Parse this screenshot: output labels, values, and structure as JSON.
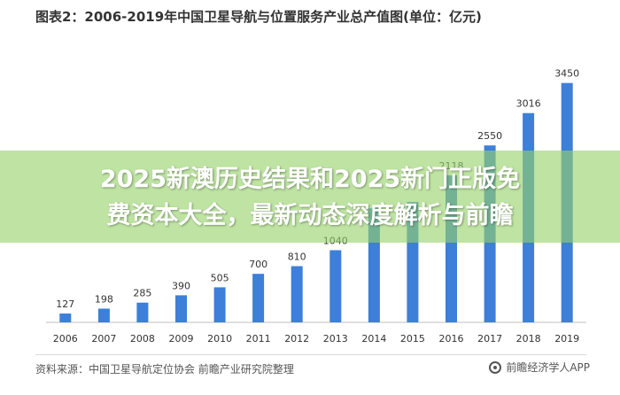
{
  "chart_data": {
    "type": "bar",
    "title": "图表2：2006-2019年中国卫星导航与位置服务产业总产值图(单位：亿元)",
    "categories": [
      "2006",
      "2007",
      "2008",
      "2009",
      "2010",
      "2011",
      "2012",
      "2013",
      "2014",
      "2015",
      "2016",
      "2017",
      "2018",
      "2019"
    ],
    "values": [
      127,
      198,
      285,
      390,
      505,
      700,
      810,
      1040,
      1643,
      1735,
      2118,
      2550,
      3016,
      3450
    ],
    "value_labels": [
      "127",
      "198",
      "285",
      "390",
      "505",
      "700",
      "810",
      "1040",
      "",
      "",
      "2118",
      "2550",
      "3016",
      "3450"
    ],
    "ylim": [
      0,
      3650
    ],
    "grid": false,
    "bar_color": "#3d7fd9"
  },
  "banner": {
    "line1": "2025新澳历史结果和2025新门正版免",
    "line2": "费资本大全，最新动态深度解析与前瞻"
  },
  "footer": {
    "source": "资料来源：中国卫星导航定位协会 前瞻产业研究院整理",
    "brand": "前瞻经济学人APP"
  }
}
